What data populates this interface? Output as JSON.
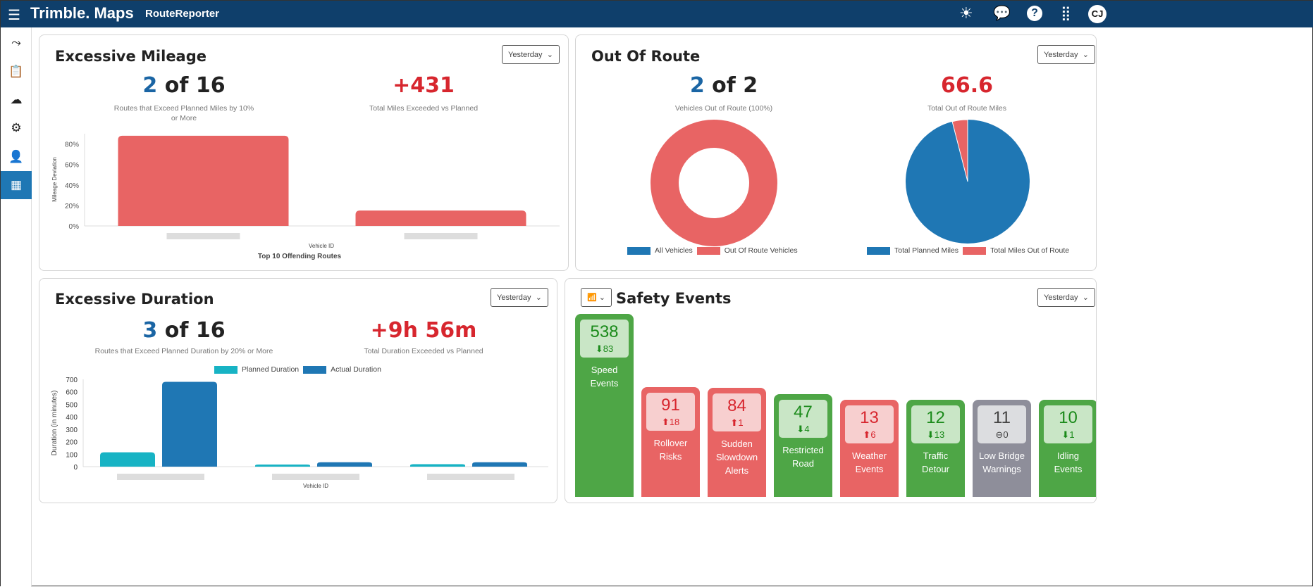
{
  "header": {
    "brand": "Trimble. Maps",
    "app": "RouteReporter",
    "avatar": "CJ",
    "icons": [
      "menu-icon",
      "sun-icon",
      "chat-icon",
      "help-icon",
      "apps-grid-icon"
    ]
  },
  "sidebar": {
    "items": [
      "route-icon",
      "clipboard-icon",
      "cloud-download-icon",
      "gears-icon",
      "user-check-icon",
      "dashboard-icon"
    ],
    "active": 5
  },
  "colors": {
    "blue": "#1f77b4",
    "red": "#e86464",
    "teal": "#17b3c4",
    "green": "#4ea646",
    "grey": "#8e8e9a",
    "header": "#0f3f6b"
  },
  "mileage": {
    "title": "Excessive Mileage",
    "period": "Yesterday",
    "count": "2",
    "of": " of 16",
    "count_label": "Routes that Exceed Planned Miles by 10% or More",
    "total": "+431",
    "total_label": "Total Miles Exceeded vs Planned",
    "chart_data": {
      "type": "bar",
      "ylabel": "Mileage Deviation",
      "xlabel": "Vehicle ID",
      "title": "Top 10 Offending Routes",
      "yticks": [
        "0%",
        "20%",
        "40%",
        "60%",
        "80%"
      ],
      "ylim": [
        0,
        90
      ],
      "values": [
        88,
        15
      ]
    }
  },
  "out_of_route": {
    "title": "Out Of Route",
    "period": "Yesterday",
    "count": "2",
    "of": " of 2",
    "count_label": "Vehicles Out of Route (100%)",
    "total": "66.6",
    "total_label": "Total Out of Route Miles",
    "chart_data": [
      {
        "type": "pie",
        "donut": true,
        "legend": [
          "All Vehicles",
          "Out Of Route Vehicles"
        ],
        "values": [
          0,
          2
        ]
      },
      {
        "type": "pie",
        "legend": [
          "Total Planned Miles",
          "Total Miles Out of Route"
        ],
        "percent": [
          96,
          4
        ]
      }
    ]
  },
  "duration": {
    "title": "Excessive Duration",
    "period": "Yesterday",
    "count": "3",
    "of": " of 16",
    "count_label": "Routes that Exceed Planned Duration by 20% or More",
    "total": "+9h 56m",
    "total_label": "Total Duration Exceeded vs Planned",
    "chart_data": {
      "type": "bar",
      "ylabel": "Duration (in minutes)",
      "xlabel": "Vehicle ID",
      "ylim": [
        0,
        700
      ],
      "yticks": [
        "0",
        "100",
        "200",
        "300",
        "400",
        "500",
        "600",
        "700"
      ],
      "series": [
        {
          "name": "Planned Duration",
          "values": [
            115,
            15,
            20
          ]
        },
        {
          "name": "Actual Duration",
          "values": [
            680,
            35,
            35
          ]
        }
      ]
    }
  },
  "safety": {
    "title": "Safety Events",
    "period": "Yesterday",
    "events": [
      {
        "count": "538",
        "delta": "83",
        "dir": "down",
        "label": "Speed Events",
        "color": "green"
      },
      {
        "count": "91",
        "delta": "18",
        "dir": "up",
        "label": "Rollover Risks",
        "color": "red"
      },
      {
        "count": "84",
        "delta": "1",
        "dir": "up",
        "label": "Sudden Slowdown Alerts",
        "color": "red"
      },
      {
        "count": "47",
        "delta": "4",
        "dir": "down",
        "label": "Restricted Road",
        "color": "green"
      },
      {
        "count": "13",
        "delta": "6",
        "dir": "up",
        "label": "Weather Events",
        "color": "red"
      },
      {
        "count": "12",
        "delta": "13",
        "dir": "down",
        "label": "Traffic Detour",
        "color": "green"
      },
      {
        "count": "11",
        "delta": "0",
        "dir": "none",
        "label": "Low Bridge Warnings",
        "color": "grey"
      },
      {
        "count": "10",
        "delta": "1",
        "dir": "down",
        "label": "Idling Events",
        "color": "green"
      }
    ]
  }
}
